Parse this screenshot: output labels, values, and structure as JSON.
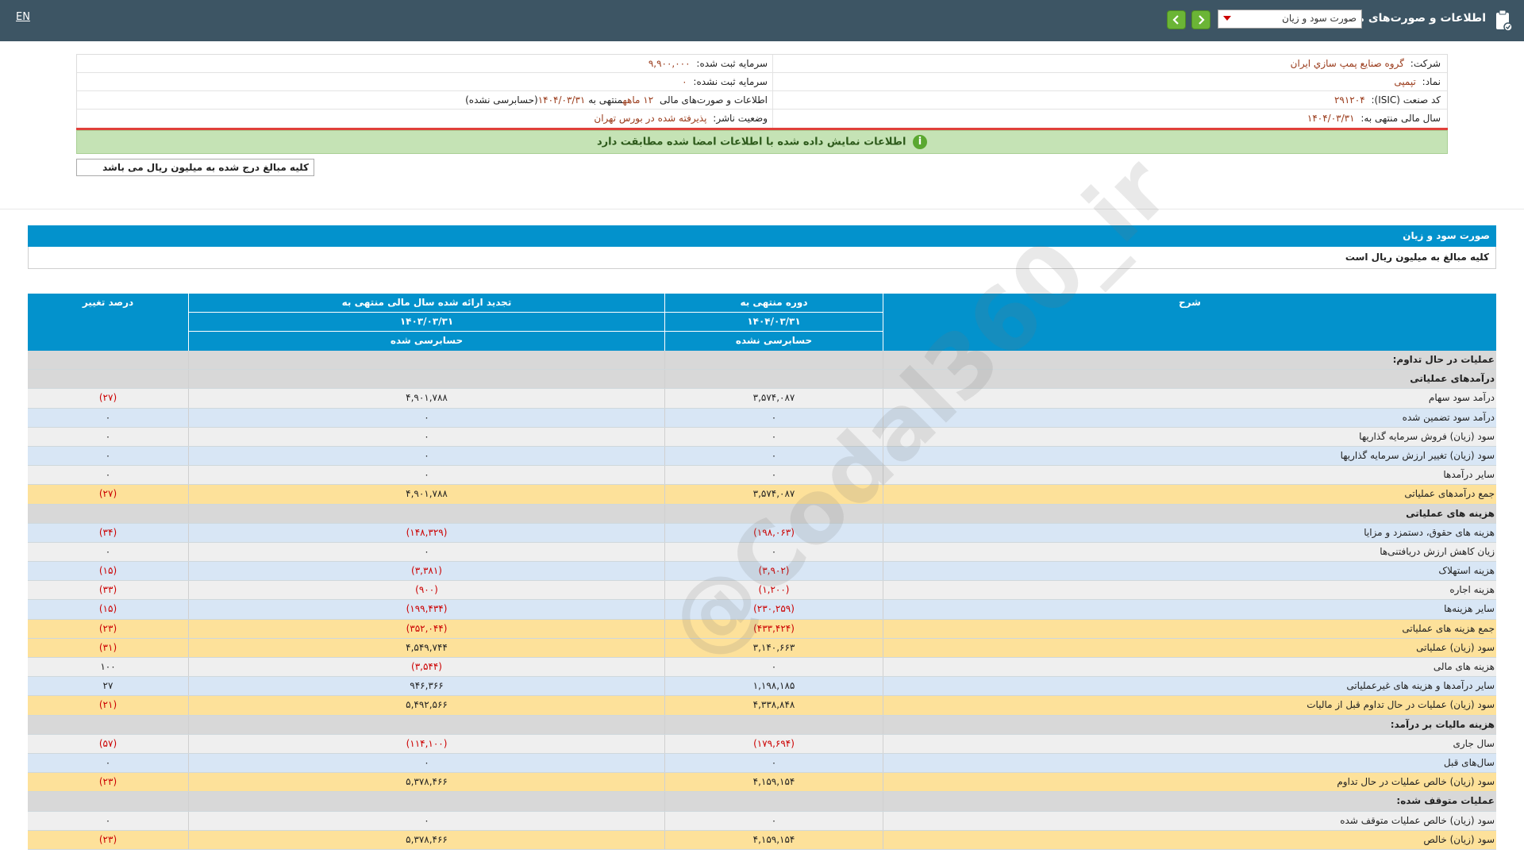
{
  "topbar": {
    "title": "اطلاعات و صورت‌های مالی",
    "selected_statement": "صورت سود و زیان",
    "lang_toggle": "EN"
  },
  "info": {
    "company_label": "شرکت:",
    "company_value": "گروه صنايع پمپ سازي ايران",
    "symbol_label": "نماد:",
    "symbol_value": "تپمپی",
    "isic_label": "کد صنعت (ISIC):",
    "isic_value": "۲۹۱۲۰۴",
    "fiscal_label": "سال مالی منتهی به:",
    "fiscal_value": "۱۴۰۴/۰۳/۳۱",
    "reg_capital_label": "سرمایه ثبت شده:",
    "reg_capital_value": "۹,۹۰۰,۰۰۰",
    "unreg_capital_label": "سرمایه ثبت نشده:",
    "unreg_capital_value": "۰",
    "statement_label": "اطلاعات و صورت‌های مالی",
    "statement_value_a": "۱۲ ماهه",
    "statement_value_b": "منتهی به",
    "statement_value_c": "۱۴۰۴/۰۳/۳۱",
    "statement_value_d": "(حسابرسی نشده)",
    "status_label": "وضعیت ناشر:",
    "status_value": "پذیرفته شده در بورس تهران"
  },
  "notice": "اطلاعات نمایش داده شده با اطلاعات امضا شده مطابقت دارد",
  "unit_note": "کلیه مبالغ درج شده به میلیون ریال می باشد",
  "section": {
    "title": "صورت سود و زیان",
    "subtitle": "کلیه مبالغ به میلیون ریال است"
  },
  "watermark": "@Codal360_ir",
  "table": {
    "headers": {
      "desc": "شرح",
      "period": "دوره منتهی به",
      "period_date": "۱۴۰۴/۰۳/۳۱",
      "period_status": "حسابرسی نشده",
      "restated": "تجدید ارائه شده سال مالی منتهی به",
      "restated_date": "۱۴۰۳/۰۳/۳۱",
      "restated_status": "حسابرسی شده",
      "change": "درصد تغییر"
    },
    "rows": [
      {
        "style": "gray",
        "desc": "عملیات در حال تداوم:",
        "a": "",
        "b": "",
        "c": ""
      },
      {
        "style": "gray",
        "desc": "درآمدهای عملیاتی",
        "a": "",
        "b": "",
        "c": ""
      },
      {
        "style": "light",
        "desc": "درآمد سود سهام",
        "a": "۳,۵۷۴,۰۸۷",
        "b": "۴,۹۰۱,۷۸۸",
        "c": "(۲۷)"
      },
      {
        "style": "blue",
        "desc": "درآمد سود تضمین شده",
        "a": "۰",
        "b": "۰",
        "c": "۰"
      },
      {
        "style": "light",
        "desc": "سود (زیان) فروش سرمایه گذاریها",
        "a": "۰",
        "b": "۰",
        "c": "۰"
      },
      {
        "style": "blue",
        "desc": "سود (زیان) تغییر ارزش سرمایه گذاریها",
        "a": "۰",
        "b": "۰",
        "c": "۰"
      },
      {
        "style": "light",
        "desc": "سایر درآمدها",
        "a": "۰",
        "b": "۰",
        "c": "۰"
      },
      {
        "style": "yellow",
        "desc": "جمع درآمدهای عملیاتی",
        "a": "۳,۵۷۴,۰۸۷",
        "b": "۴,۹۰۱,۷۸۸",
        "c": "(۲۷)"
      },
      {
        "style": "gray",
        "desc": "هزینه های عملیاتی",
        "a": "",
        "b": "",
        "c": ""
      },
      {
        "style": "blue",
        "desc": "هزینه های حقوق، دستمزد و مزایا",
        "a": "(۱۹۸,۰۶۳)",
        "b": "(۱۴۸,۳۲۹)",
        "c": "(۳۴)"
      },
      {
        "style": "light",
        "desc": "زیان کاهش ارزش دریافتنی‌ها",
        "a": "۰",
        "b": "۰",
        "c": "۰"
      },
      {
        "style": "blue",
        "desc": "هزینه استهلاک",
        "a": "(۳,۹۰۲)",
        "b": "(۳,۳۸۱)",
        "c": "(۱۵)"
      },
      {
        "style": "light",
        "desc": "هزینه اجاره",
        "a": "(۱,۲۰۰)",
        "b": "(۹۰۰)",
        "c": "(۳۳)"
      },
      {
        "style": "blue",
        "desc": "سایر هزینه‌ها",
        "a": "(۲۳۰,۲۵۹)",
        "b": "(۱۹۹,۴۳۴)",
        "c": "(۱۵)"
      },
      {
        "style": "yellow",
        "desc": "جمع هزینه های عملیاتی",
        "a": "(۴۳۳,۴۲۴)",
        "b": "(۳۵۲,۰۴۴)",
        "c": "(۲۳)"
      },
      {
        "style": "yellow",
        "desc": "سود (زیان) عملیاتی",
        "a": "۳,۱۴۰,۶۶۳",
        "b": "۴,۵۴۹,۷۴۴",
        "c": "(۳۱)"
      },
      {
        "style": "light",
        "desc": "هزینه های مالی",
        "a": "۰",
        "b": "(۳,۵۴۴)",
        "c": "۱۰۰"
      },
      {
        "style": "blue",
        "desc": "سایر درآمدها و هزینه های غیرعملیاتی",
        "a": "۱,۱۹۸,۱۸۵",
        "b": "۹۴۶,۳۶۶",
        "c": "۲۷"
      },
      {
        "style": "yellow",
        "desc": "سود (زیان) عملیات در حال تداوم قبل از مالیات",
        "a": "۴,۳۳۸,۸۴۸",
        "b": "۵,۴۹۲,۵۶۶",
        "c": "(۲۱)"
      },
      {
        "style": "gray",
        "desc": "هزینه مالیات بر درآمد:",
        "a": "",
        "b": "",
        "c": ""
      },
      {
        "style": "light",
        "desc": "سال جاری",
        "a": "(۱۷۹,۶۹۴)",
        "b": "(۱۱۴,۱۰۰)",
        "c": "(۵۷)"
      },
      {
        "style": "blue",
        "desc": "سال‌های قبل",
        "a": "۰",
        "b": "۰",
        "c": "۰"
      },
      {
        "style": "yellow",
        "desc": "سود (زیان) خالص عملیات در حال تداوم",
        "a": "۴,۱۵۹,۱۵۴",
        "b": "۵,۳۷۸,۴۶۶",
        "c": "(۲۳)"
      },
      {
        "style": "gray",
        "desc": "عملیات متوقف شده:",
        "a": "",
        "b": "",
        "c": ""
      },
      {
        "style": "light",
        "desc": "سود (زیان) خالص عملیات متوقف شده",
        "a": "۰",
        "b": "۰",
        "c": "۰"
      },
      {
        "style": "yellow",
        "desc": "سود (زیان) خالص",
        "a": "۴,۱۵۹,۱۵۴",
        "b": "۵,۳۷۸,۴۶۶",
        "c": "(۲۳)"
      }
    ]
  }
}
